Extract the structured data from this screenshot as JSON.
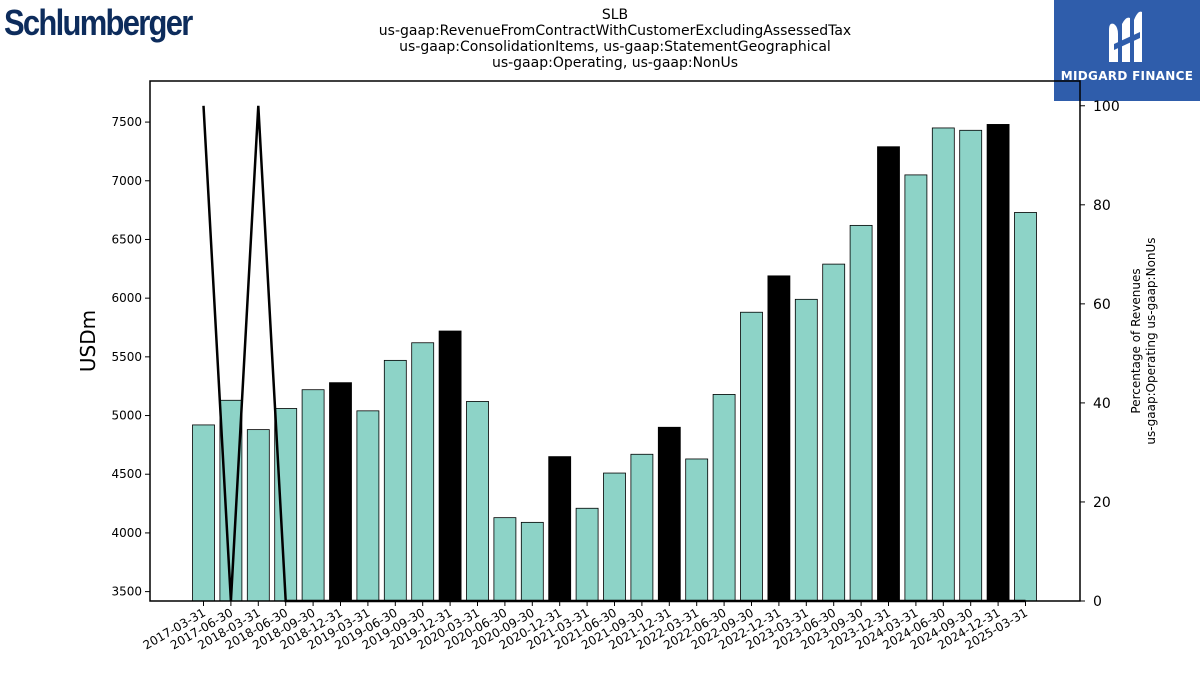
{
  "logo": {
    "company": "Schlumberger"
  },
  "brand": {
    "name": "MIDGARD FINANCE"
  },
  "chart_data": {
    "type": "bar",
    "title_lines": [
      "SLB",
      "us-gaap:RevenueFromContractWithCustomerExcludingAssessedTax",
      "us-gaap:ConsolidationItems, us-gaap:StatementGeographical",
      "us-gaap:Operating, us-gaap:NonUs"
    ],
    "ylabel": "USDm",
    "y2label_lines": [
      "Percentage of Revenues",
      "us-gaap:Operating us-gaap:NonUs"
    ],
    "categories": [
      "2017-03-31",
      "2017-06-30",
      "2018-03-31",
      "2018-06-30",
      "2018-09-30",
      "2018-12-31",
      "2019-03-31",
      "2019-06-30",
      "2019-09-30",
      "2019-12-31",
      "2020-03-31",
      "2020-06-30",
      "2020-09-30",
      "2020-12-31",
      "2021-03-31",
      "2021-06-30",
      "2021-09-30",
      "2021-12-31",
      "2022-03-31",
      "2022-06-30",
      "2022-09-30",
      "2022-12-31",
      "2023-03-31",
      "2023-06-30",
      "2023-09-30",
      "2023-12-31",
      "2024-03-31",
      "2024-06-30",
      "2024-09-30",
      "2024-12-31",
      "2025-03-31"
    ],
    "values": [
      4920,
      5130,
      4880,
      5060,
      5220,
      5280,
      5040,
      5470,
      5620,
      5720,
      5120,
      4130,
      4090,
      4650,
      4210,
      4510,
      4670,
      4900,
      4630,
      5180,
      5880,
      6190,
      5990,
      6290,
      6620,
      7290,
      7050,
      7450,
      7430,
      7480,
      6730
    ],
    "highlighted": [
      false,
      false,
      false,
      false,
      false,
      true,
      false,
      false,
      false,
      true,
      false,
      false,
      false,
      true,
      false,
      false,
      false,
      true,
      false,
      false,
      false,
      true,
      false,
      false,
      false,
      true,
      false,
      false,
      false,
      true,
      false
    ],
    "line_series": {
      "axis": "right",
      "values": [
        100,
        0,
        100,
        0,
        0,
        0,
        0,
        0,
        0,
        0,
        0,
        0,
        0,
        0,
        0,
        0,
        0,
        0,
        0,
        0,
        0,
        0,
        0,
        0,
        0,
        0,
        0,
        0,
        0,
        0,
        0
      ]
    },
    "ylim": [
      3420,
      7850
    ],
    "yticks": [
      3500,
      4000,
      4500,
      5000,
      5500,
      6000,
      6500,
      7000,
      7500
    ],
    "y2lim": [
      0,
      105
    ],
    "y2ticks": [
      0,
      20,
      40,
      60,
      80,
      100
    ],
    "colors": {
      "bar": "#8dd3c7",
      "bar_highlight": "#000000",
      "line": "#000000"
    }
  }
}
